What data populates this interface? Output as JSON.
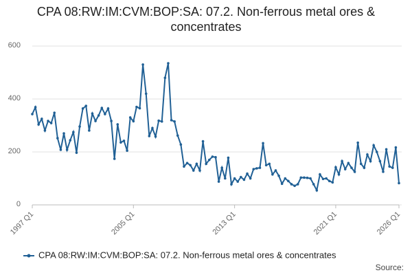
{
  "chart_data": {
    "type": "line",
    "title": "CPA 08:RW:IM:CVM:BOP:SA: 07.2. Non-ferrous metal ores & concentrates",
    "source": "Source:",
    "categories": [
      "1997 Q1",
      null,
      null,
      null,
      null,
      null,
      null,
      null,
      null,
      null,
      null,
      null,
      null,
      null,
      null,
      null,
      null,
      null,
      null,
      null,
      null,
      null,
      null,
      null,
      null,
      null,
      null,
      null,
      null,
      null,
      null,
      null,
      "2005 Q1",
      null,
      null,
      null,
      null,
      null,
      null,
      null,
      null,
      null,
      null,
      null,
      null,
      null,
      null,
      null,
      null,
      null,
      null,
      null,
      null,
      null,
      null,
      null,
      null,
      null,
      null,
      null,
      null,
      null,
      null,
      null,
      "2013 Q1",
      null,
      null,
      null,
      null,
      null,
      null,
      null,
      null,
      null,
      null,
      null,
      null,
      null,
      null,
      null,
      null,
      null,
      null,
      null,
      null,
      null,
      null,
      null,
      null,
      null,
      null,
      null,
      null,
      null,
      null,
      null,
      "2021 Q1",
      null,
      null,
      null,
      null,
      null,
      null,
      null,
      null,
      null,
      null,
      null,
      null,
      null,
      null,
      null,
      null,
      null,
      null,
      null,
      "2026 Q1"
    ],
    "series": [
      {
        "name": "CPA 08:RW:IM:CVM:BOP:SA: 07.2. Non-ferrous metal ores & concentrates",
        "color": "#206095",
        "values": [
          343,
          369,
          304,
          325,
          281,
          317,
          309,
          348,
          252,
          208,
          270,
          208,
          244,
          275,
          197,
          296,
          364,
          374,
          281,
          345,
          317,
          338,
          366,
          343,
          364,
          317,
          174,
          304,
          236,
          242,
          205,
          330,
          316,
          370,
          365,
          530,
          420,
          260,
          290,
          258,
          318,
          315,
          480,
          535,
          320,
          315,
          262,
          228,
          145,
          158,
          150,
          130,
          155,
          130,
          240,
          155,
          170,
          182,
          180,
          88,
          140,
          100,
          178,
          78,
          100,
          88,
          105,
          95,
          118,
          100,
          135,
          138,
          140,
          233,
          150,
          155,
          115,
          130,
          110,
          80,
          100,
          90,
          78,
          72,
          78,
          103,
          103,
          102,
          100,
          78,
          55,
          115,
          98,
          100,
          90,
          85,
          142,
          115,
          165,
          135,
          158,
          140,
          125,
          235,
          155,
          140,
          190,
          165,
          225,
          200,
          165,
          125,
          210,
          145,
          140,
          217,
          82
        ]
      }
    ],
    "ylim": [
      0,
      600
    ],
    "yticks": [
      0,
      200,
      400,
      600
    ],
    "grid": true,
    "legend": "bottom"
  }
}
